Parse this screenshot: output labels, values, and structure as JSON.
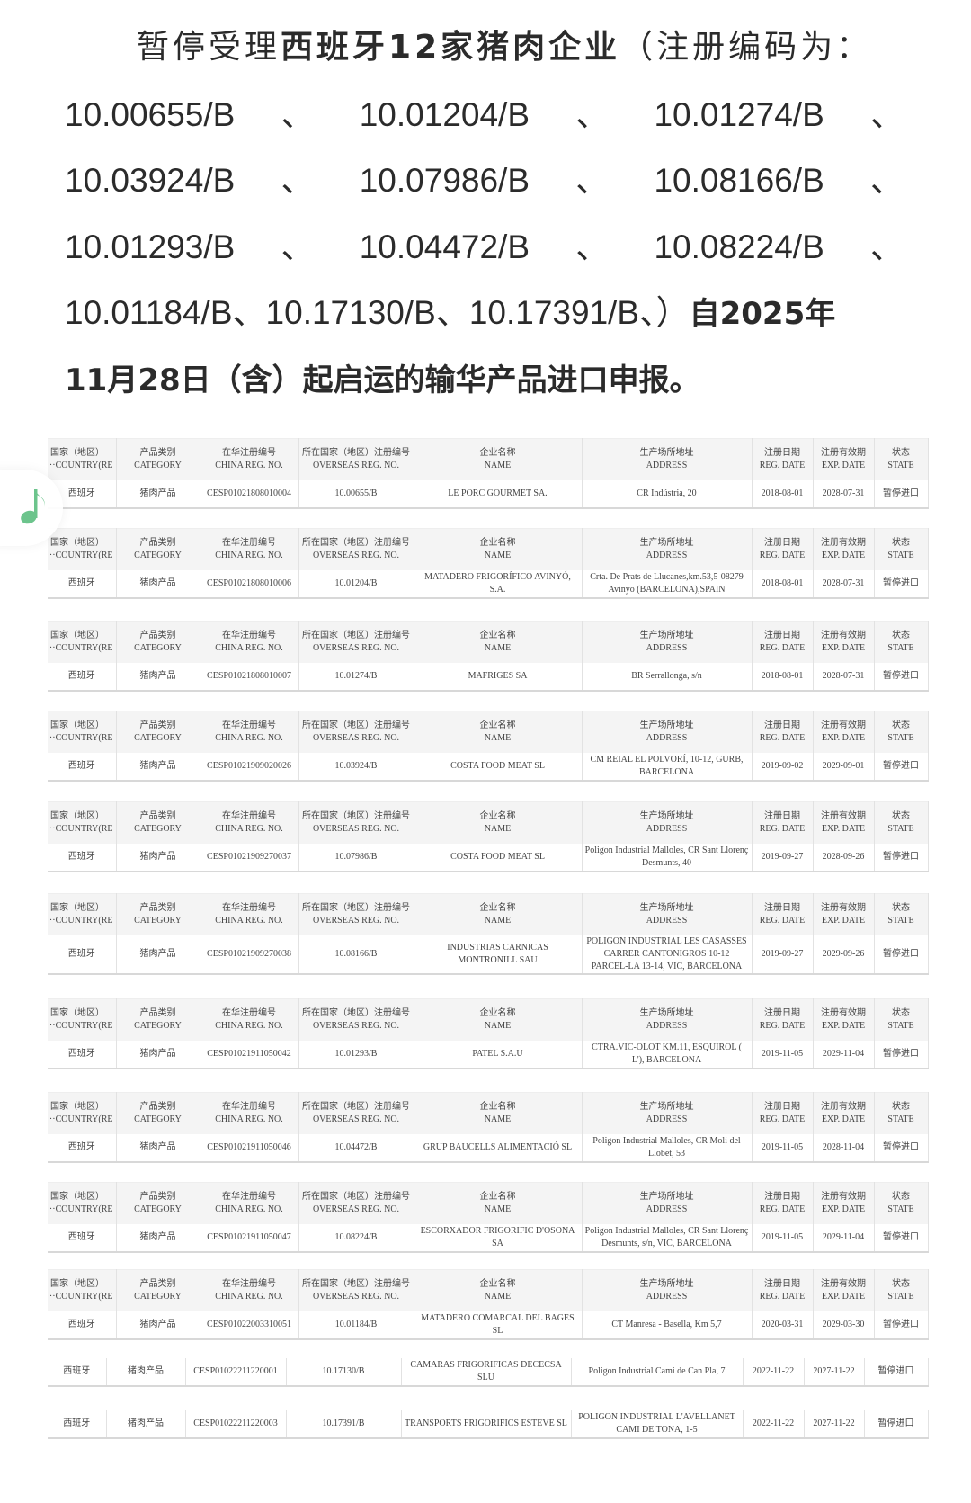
{
  "intro": {
    "line1_a": "暂停受理",
    "line1_b": "西班牙12家猪肉企业",
    "line1_c": "（注册编码为：",
    "code_rows": [
      [
        "10.00655/B",
        "10.01204/B",
        "10.01274/B"
      ],
      [
        "10.03924/B",
        "10.07986/B",
        "10.08166/B"
      ],
      [
        "10.01293/B",
        "10.04472/B",
        "10.08224/B"
      ]
    ],
    "separator": "、",
    "line5_a": "10.01184/B、10.17130/B、10.17391/B、）",
    "line5_b": "自2025年",
    "line6": "11月28日（含）起启运的输华产品进口申报。"
  },
  "table_headers": [
    {
      "zh": "国家（地区）",
      "en": "COUNTRY(RE···"
    },
    {
      "zh": "产品类别",
      "en": "CATEGORY"
    },
    {
      "zh": "在华注册编号",
      "en": "CHINA REG. NO."
    },
    {
      "zh": "所在国家（地区）注册编号",
      "en": "OVERSEAS REG. NO."
    },
    {
      "zh": "企业名称",
      "en": "NAME"
    },
    {
      "zh": "生产场所地址",
      "en": "ADDRESS"
    },
    {
      "zh": "注册日期",
      "en": "REG. DATE"
    },
    {
      "zh": "注册有效期",
      "en": "EXP. DATE"
    },
    {
      "zh": "状态",
      "en": "STATE"
    }
  ],
  "rows": [
    {
      "country": "西班牙",
      "category": "猪肉产品",
      "china_reg": "CESP01021808010004",
      "overseas_reg": "10.00655/B",
      "name": "LE PORC GOURMET SA.",
      "address": "CR Indústria, 20",
      "reg_date": "2018-08-01",
      "exp_date": "2028-07-31",
      "state": "暂停进口",
      "has_header": true
    },
    {
      "country": "西班牙",
      "category": "猪肉产品",
      "china_reg": "CESP01021808010006",
      "overseas_reg": "10.01204/B",
      "name": "MATADERO FRIGORÍFICO AVINYÓ, S.A.",
      "address": "Crta. De Prats de Llucanes,km.53,5-08279 Avinyo (BARCELONA),SPAIN",
      "reg_date": "2018-08-01",
      "exp_date": "2028-07-31",
      "state": "暂停进口",
      "has_header": true
    },
    {
      "country": "西班牙",
      "category": "猪肉产品",
      "china_reg": "CESP01021808010007",
      "overseas_reg": "10.01274/B",
      "name": "MAFRIGES SA",
      "address": "BR Serrallonga, s/n",
      "reg_date": "2018-08-01",
      "exp_date": "2028-07-31",
      "state": "暂停进口",
      "has_header": true
    },
    {
      "country": "西班牙",
      "category": "猪肉产品",
      "china_reg": "CESP01021909020026",
      "overseas_reg": "10.03924/B",
      "name": "COSTA FOOD MEAT SL",
      "address": "CM REIAL EL POLVORÍ, 10-12, GURB, BARCELONA",
      "reg_date": "2019-09-02",
      "exp_date": "2029-09-01",
      "state": "暂停进口",
      "has_header": true
    },
    {
      "country": "西班牙",
      "category": "猪肉产品",
      "china_reg": "CESP01021909270037",
      "overseas_reg": "10.07986/B",
      "name": "COSTA FOOD MEAT SL",
      "address": "Poligon Industrial Malloles, CR Sant Llorenç Desmunts, 40",
      "reg_date": "2019-09-27",
      "exp_date": "2028-09-26",
      "state": "暂停进口",
      "has_header": true
    },
    {
      "country": "西班牙",
      "category": "猪肉产品",
      "china_reg": "CESP01021909270038",
      "overseas_reg": "10.08166/B",
      "name": "INDUSTRIAS CARNICAS MONTRONILL SAU",
      "address": "POLIGON INDUSTRIAL LES CASASSES CARRER CANTONIGROS 10-12 PARCEL-LA 13-14, VIC, BARCELONA",
      "reg_date": "2019-09-27",
      "exp_date": "2029-09-26",
      "state": "暂停进口",
      "has_header": true
    },
    {
      "country": "西班牙",
      "category": "猪肉产品",
      "china_reg": "CESP01021911050042",
      "overseas_reg": "10.01293/B",
      "name": "PATEL S.A.U",
      "address": "CTRA.VIC-OLOT KM.11, ESQUIROL ( L'), BARCELONA",
      "reg_date": "2019-11-05",
      "exp_date": "2029-11-04",
      "state": "暂停进口",
      "has_header": true
    },
    {
      "country": "西班牙",
      "category": "猪肉产品",
      "china_reg": "CESP01021911050046",
      "overseas_reg": "10.04472/B",
      "name": "GRUP BAUCELLS ALIMENTACIÓ SL",
      "address": "Poligon Industrial Malloles, CR Moli del Llobet, 53",
      "reg_date": "2019-11-05",
      "exp_date": "2028-11-04",
      "state": "暂停进口",
      "has_header": true
    },
    {
      "country": "西班牙",
      "category": "猪肉产品",
      "china_reg": "CESP01021911050047",
      "overseas_reg": "10.08224/B",
      "name": "ESCORXADOR FRIGORIFIC D'OSONA SA",
      "address": "Poligon Industrial Malloles, CR Sant Llorenç Desmunts, s/n, VIC, BARCELONA",
      "reg_date": "2019-11-05",
      "exp_date": "2029-11-04",
      "state": "暂停进口",
      "has_header": true
    },
    {
      "country": "西班牙",
      "category": "猪肉产品",
      "china_reg": "CESP01022003310051",
      "overseas_reg": "10.01184/B",
      "name": "MATADERO COMARCAL DEL BAGES SL",
      "address": "CT Manresa - Basella, Km 5,7",
      "reg_date": "2020-03-31",
      "exp_date": "2029-03-30",
      "state": "暂停进口",
      "has_header": true
    },
    {
      "country": "西班牙",
      "category": "猪肉产品",
      "china_reg": "CESP01022211220001",
      "overseas_reg": "10.17130/B",
      "name": "CAMARAS FRIGORIFICAS DECECSA SLU",
      "address": "Poligon Industrial Cami de Can Pla, 7",
      "reg_date": "2022-11-22",
      "exp_date": "2027-11-22",
      "state": "暂停进口",
      "has_header": false
    },
    {
      "country": "西班牙",
      "category": "猪肉产品",
      "china_reg": "CESP01022211220003",
      "overseas_reg": "10.17391/B",
      "name": "TRANSPORTS FRIGORIFICS ESTEVE SL",
      "address": "POLIGON INDUSTRIAL L'AVELLANET CAMI DE TONA, 1-5",
      "reg_date": "2022-11-22",
      "exp_date": "2027-11-22",
      "state": "暂停进口",
      "has_header": false
    }
  ],
  "floating_button": {
    "icon": "music-note-icon",
    "color": "#6cc48c"
  }
}
